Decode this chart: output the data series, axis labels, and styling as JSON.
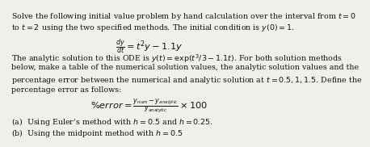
{
  "line1": "Solve the following initial value problem by hand calculation over the interval from $t = 0$",
  "line2": "to $t = 2$ using the two specified methods. The initial condition is $y(0) = 1$.",
  "ode": "$\\frac{dy}{dt} = t^2y - 1.1y$",
  "line3": "The analytic solution to this ODE is $y(t) = \\exp(t^3/3 - 1.1t)$. For both solution methods",
  "line4": "below, make a table of the numerical solution values, the analytic solution values and the",
  "line5": "percentage error between the numerical and analytic solution at $t = 0.5, 1, 1.5$. Define the",
  "line6": "percentage error as follows:",
  "percent_error": "$\\% error = \\frac{y_{num} - y_{analytic}}{y_{analytic}} \\times 100$",
  "part_a": "(a)  Using Euler's method with $h = 0.5$ and $h = 0.25$.",
  "part_b": "(b)  Using the midpoint method with $h = 0.5$",
  "bg_color": "#f0f0eb",
  "text_color": "#111111",
  "fontsize_body": 6.8,
  "fontsize_math": 8.2
}
